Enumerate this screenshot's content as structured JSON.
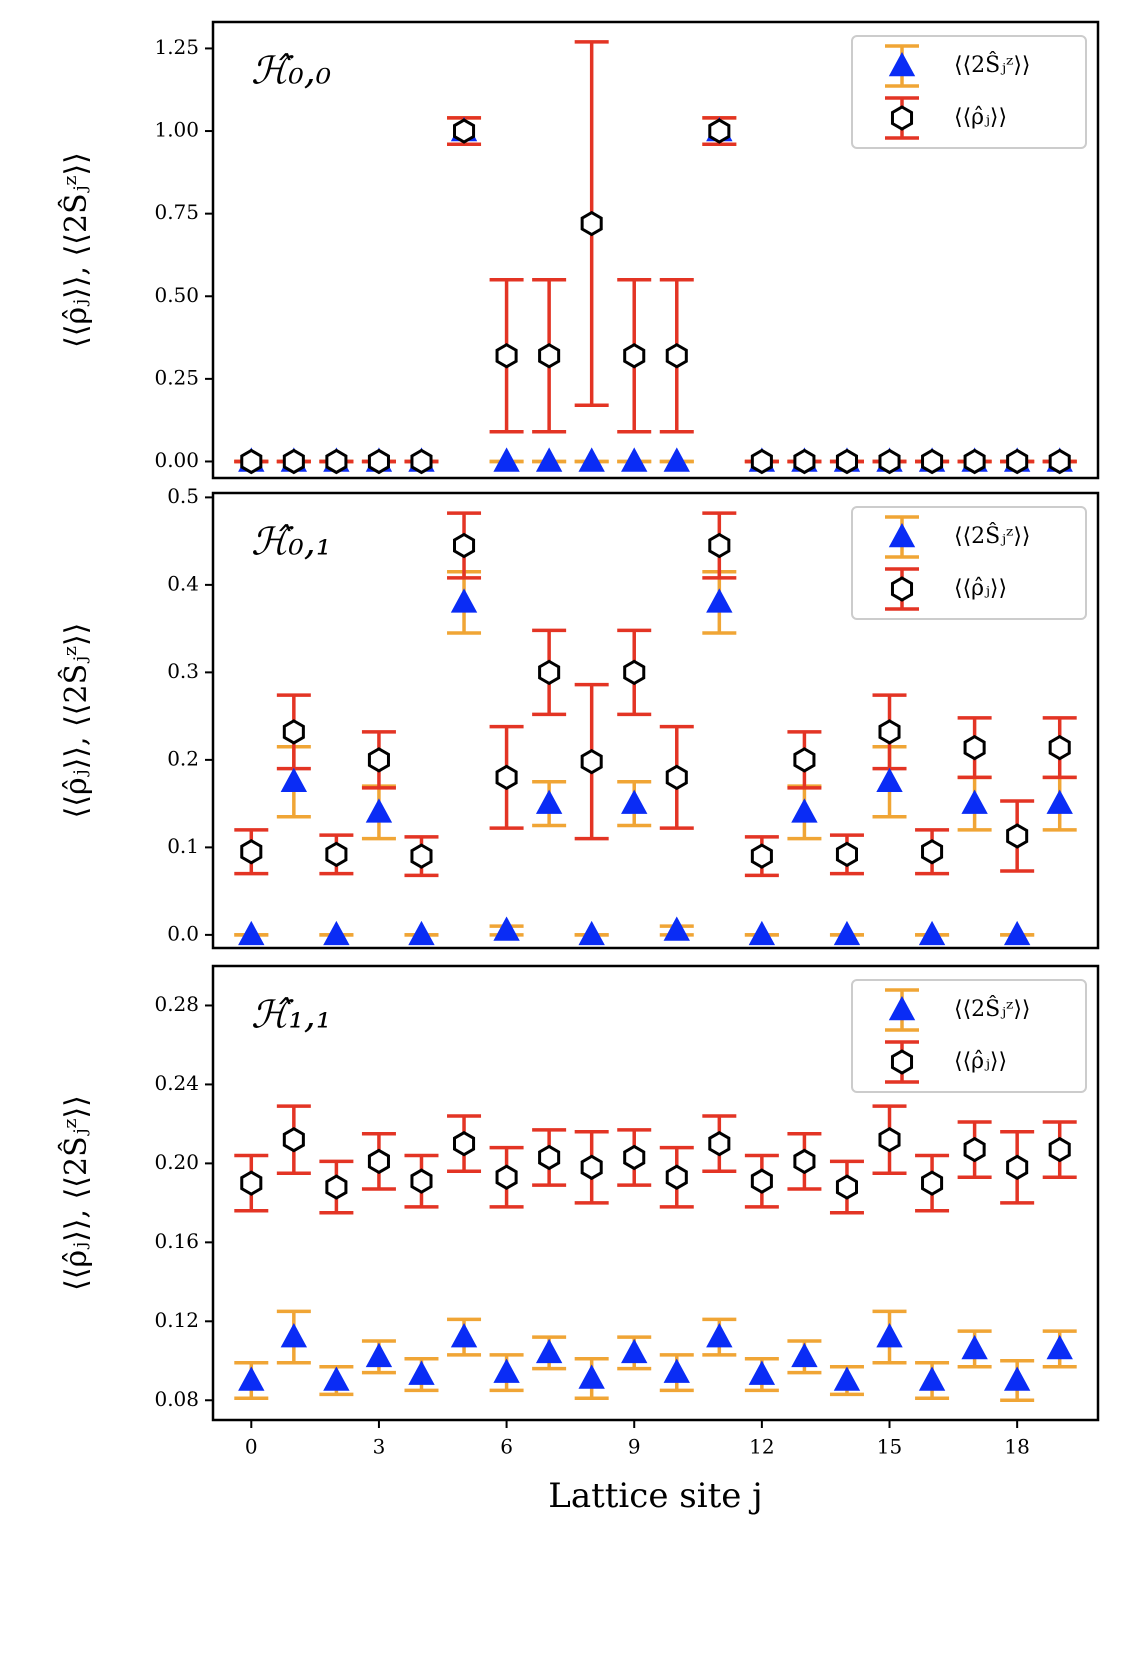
{
  "chart_data": [
    {
      "type": "errorbar",
      "title": "ℋ̂₀,₀",
      "ylabel": "⟨⟨ρ̂ⱼ⟩⟩, ⟨⟨2Ŝⱼᶻ⟩⟩",
      "legend": "upper right",
      "x": [
        0,
        1,
        2,
        3,
        4,
        5,
        6,
        7,
        8,
        9,
        10,
        11,
        12,
        13,
        14,
        15,
        16,
        17,
        18,
        19
      ],
      "xlim": [
        -0.9,
        19.9
      ],
      "ylim": [
        -0.05,
        1.33
      ],
      "yticks": [
        {
          "value": 0,
          "label": "0.00"
        },
        0.25,
        {
          "value": 0.5,
          "label": "0.50"
        },
        0.75,
        {
          "value": 1,
          "label": "1.00"
        },
        1.25
      ],
      "series": [
        {
          "name": "⟨⟨2Ŝⱼᶻ⟩⟩",
          "marker": "triangle",
          "color": "#0a2cf5",
          "ecolor": "#f0a535",
          "values": [
            0,
            0,
            0,
            0,
            0,
            1,
            0,
            0,
            0,
            0,
            0,
            1,
            0,
            0,
            0,
            0,
            0,
            0,
            0,
            0
          ],
          "errors": [
            0,
            0,
            0,
            0,
            0,
            0.04,
            0,
            0,
            0,
            0,
            0,
            0.04,
            0,
            0,
            0,
            0,
            0,
            0,
            0,
            0
          ]
        },
        {
          "name": "⟨⟨ρ̂ⱼ⟩⟩",
          "marker": "hexagon",
          "color": "#000000",
          "ecolor": "#e33424",
          "values": [
            0,
            0,
            0,
            0,
            0,
            1,
            0.32,
            0.32,
            0.72,
            0.32,
            0.32,
            1,
            0,
            0,
            0,
            0,
            0,
            0,
            0,
            0
          ],
          "errors": [
            0,
            0,
            0,
            0,
            0,
            0.04,
            0.23,
            0.23,
            0.55,
            0.23,
            0.23,
            0.04,
            0,
            0,
            0,
            0,
            0,
            0,
            0,
            0
          ]
        }
      ]
    },
    {
      "type": "errorbar",
      "title": "ℋ̂₀,₁",
      "ylabel": "⟨⟨ρ̂ⱼ⟩⟩, ⟨⟨2Ŝⱼᶻ⟩⟩",
      "legend": "upper right",
      "x": [
        0,
        1,
        2,
        3,
        4,
        5,
        6,
        7,
        8,
        9,
        10,
        11,
        12,
        13,
        14,
        15,
        16,
        17,
        18,
        19
      ],
      "xlim": [
        -0.9,
        19.9
      ],
      "ylim": [
        -0.015,
        0.505
      ],
      "yticks": [
        {
          "value": 0,
          "label": "0.0"
        },
        0.1,
        0.2,
        0.3,
        0.4,
        0.5
      ],
      "series": [
        {
          "name": "⟨⟨2Ŝⱼᶻ⟩⟩",
          "marker": "triangle",
          "color": "#0a2cf5",
          "ecolor": "#f0a535",
          "values": [
            0,
            0.175,
            0,
            0.14,
            0,
            0.38,
            0.005,
            0.15,
            0,
            0.15,
            0.005,
            0.38,
            0,
            0.14,
            0,
            0.175,
            0,
            0.15,
            0,
            0.15
          ],
          "errors": [
            0,
            0.04,
            0,
            0.03,
            0,
            0.035,
            0.005,
            0.025,
            0,
            0.025,
            0.005,
            0.035,
            0,
            0.03,
            0,
            0.04,
            0,
            0.03,
            0,
            0.03
          ]
        },
        {
          "name": "⟨⟨ρ̂ⱼ⟩⟩",
          "marker": "hexagon",
          "color": "#000000",
          "ecolor": "#e33424",
          "values": [
            0.095,
            0.232,
            0.092,
            0.2,
            0.09,
            0.445,
            0.18,
            0.3,
            0.198,
            0.3,
            0.18,
            0.445,
            0.09,
            0.2,
            0.092,
            0.232,
            0.095,
            0.214,
            0.113,
            0.214
          ],
          "errors": [
            0.025,
            0.042,
            0.022,
            0.032,
            0.022,
            0.037,
            0.058,
            0.048,
            0.088,
            0.048,
            0.058,
            0.037,
            0.022,
            0.032,
            0.022,
            0.042,
            0.025,
            0.034,
            0.04,
            0.034
          ]
        }
      ]
    },
    {
      "type": "errorbar",
      "title": "ℋ̂₁,₁",
      "ylabel": "⟨⟨ρ̂ⱼ⟩⟩, ⟨⟨2Ŝⱼᶻ⟩⟩",
      "xlabel": "Lattice site j",
      "legend": "upper right",
      "x": [
        0,
        1,
        2,
        3,
        4,
        5,
        6,
        7,
        8,
        9,
        10,
        11,
        12,
        13,
        14,
        15,
        16,
        17,
        18,
        19
      ],
      "xlim": [
        -0.9,
        19.9
      ],
      "xticks": [
        0,
        3,
        6,
        9,
        12,
        15,
        18
      ],
      "ylim": [
        0.07,
        0.3
      ],
      "yticks": [
        0.08,
        0.12,
        0.16,
        {
          "value": 0.2,
          "label": "0.20"
        },
        0.24,
        0.28
      ],
      "series": [
        {
          "name": "⟨⟨2Ŝⱼᶻ⟩⟩",
          "marker": "triangle",
          "color": "#0a2cf5",
          "ecolor": "#f0a535",
          "values": [
            0.09,
            0.112,
            0.09,
            0.102,
            0.093,
            0.112,
            0.094,
            0.104,
            0.091,
            0.104,
            0.094,
            0.112,
            0.093,
            0.102,
            0.09,
            0.112,
            0.09,
            0.106,
            0.09,
            0.106
          ],
          "errors": [
            0.009,
            0.013,
            0.007,
            0.008,
            0.008,
            0.009,
            0.009,
            0.008,
            0.01,
            0.008,
            0.009,
            0.009,
            0.008,
            0.008,
            0.007,
            0.013,
            0.009,
            0.009,
            0.01,
            0.009
          ]
        },
        {
          "name": "⟨⟨ρ̂ⱼ⟩⟩",
          "marker": "hexagon",
          "color": "#000000",
          "ecolor": "#e33424",
          "values": [
            0.19,
            0.212,
            0.188,
            0.201,
            0.191,
            0.21,
            0.193,
            0.203,
            0.198,
            0.203,
            0.193,
            0.21,
            0.191,
            0.201,
            0.188,
            0.212,
            0.19,
            0.207,
            0.198,
            0.207
          ],
          "errors": [
            0.014,
            0.017,
            0.013,
            0.014,
            0.013,
            0.014,
            0.015,
            0.014,
            0.018,
            0.014,
            0.015,
            0.014,
            0.013,
            0.014,
            0.013,
            0.017,
            0.014,
            0.014,
            0.018,
            0.014
          ]
        }
      ]
    }
  ]
}
